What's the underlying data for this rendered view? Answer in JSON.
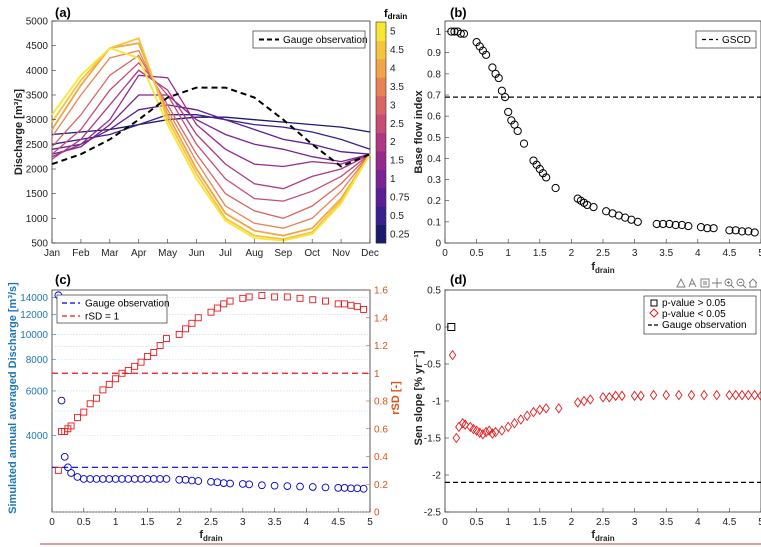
{
  "chart_data": [
    {
      "panel": "(a)",
      "type": "line",
      "ylabel": "Discharge [m³/s]",
      "categories": [
        "Jan",
        "Feb",
        "Mar",
        "Apr",
        "May",
        "Jun",
        "Jul",
        "Aug",
        "Sep",
        "Oct",
        "Nov",
        "Dec"
      ],
      "ylim": [
        500,
        5000
      ],
      "yticks": [
        500,
        1000,
        1500,
        2000,
        2500,
        3000,
        3500,
        4000,
        4500,
        5000
      ],
      "legend": [
        "Gauge observation"
      ],
      "colorbar": {
        "label": "f",
        "sub": "drain",
        "ticks": [
          "0.25",
          "0.5",
          "0.75",
          "1",
          "1.5",
          "2",
          "2.5",
          "3",
          "3.5",
          "4",
          "4.5",
          "5"
        ],
        "colors": [
          "#1a1a6e",
          "#3b1f8c",
          "#5a1f95",
          "#7a2393",
          "#962a8c",
          "#b03882",
          "#c64d74",
          "#d96565",
          "#e88257",
          "#f1a44a",
          "#f5c53a",
          "#f7e636"
        ]
      },
      "gauge": [
        2100,
        2300,
        2600,
        3000,
        3450,
        3650,
        3650,
        3450,
        3000,
        2500,
        2050,
        2300
      ],
      "series": [
        {
          "values": [
            2700,
            2750,
            2800,
            2900,
            3000,
            3050,
            3050,
            3000,
            2950,
            2900,
            2850,
            2750
          ]
        },
        {
          "values": [
            2500,
            2600,
            2700,
            2900,
            3100,
            3100,
            3000,
            2900,
            2850,
            2750,
            2600,
            2400
          ]
        },
        {
          "values": [
            2400,
            2500,
            2800,
            3200,
            3300,
            3200,
            3000,
            2800,
            2600,
            2500,
            2350,
            2300
          ]
        },
        {
          "values": [
            2300,
            2450,
            2900,
            3500,
            3500,
            3000,
            2700,
            2500,
            2400,
            2250,
            2150,
            2300
          ]
        },
        {
          "values": [
            2250,
            2500,
            3000,
            3900,
            3850,
            2900,
            2400,
            2100,
            2050,
            2150,
            2100,
            2300
          ]
        },
        {
          "values": [
            2200,
            2600,
            3300,
            4000,
            3600,
            2700,
            2100,
            1700,
            1600,
            1850,
            2000,
            2300
          ]
        },
        {
          "values": [
            2300,
            2800,
            3600,
            4150,
            3500,
            2500,
            1800,
            1400,
            1350,
            1550,
            1850,
            2300
          ]
        },
        {
          "values": [
            2450,
            3100,
            3900,
            4300,
            3300,
            2300,
            1500,
            1150,
            1000,
            1250,
            1700,
            2300
          ]
        },
        {
          "values": [
            2650,
            3500,
            4250,
            4400,
            3200,
            2150,
            1250,
            900,
            800,
            1000,
            1550,
            2300
          ]
        },
        {
          "values": [
            2800,
            3700,
            4450,
            4550,
            3100,
            2000,
            1100,
            750,
            650,
            800,
            1400,
            2300
          ]
        },
        {
          "values": [
            2950,
            3800,
            4450,
            4650,
            3000,
            1900,
            1000,
            650,
            580,
            720,
            1350,
            2300
          ]
        },
        {
          "values": [
            3100,
            3900,
            4450,
            4250,
            2900,
            1800,
            950,
            600,
            550,
            680,
            1300,
            2300
          ]
        }
      ]
    },
    {
      "panel": "(b)",
      "type": "scatter",
      "ylabel": "Base flow index",
      "xlabel": "f",
      "xlabel_sub": "drain",
      "xlim": [
        0,
        5
      ],
      "ylim": [
        0,
        1.05
      ],
      "xticks": [
        "0",
        "0.5",
        "1",
        "1.5",
        "2",
        "2.5",
        "3",
        "3.5",
        "4",
        "4.5",
        "5"
      ],
      "yticks": [
        "0",
        "0.1",
        "0.2",
        "0.3",
        "0.4",
        "0.5",
        "0.6",
        "0.7",
        "0.8",
        "0.9",
        "1"
      ],
      "legend": [
        "GSCD"
      ],
      "gscd": 0.69,
      "x": [
        0.1,
        0.15,
        0.2,
        0.25,
        0.3,
        0.5,
        0.55,
        0.6,
        0.65,
        0.75,
        0.8,
        0.85,
        0.9,
        0.95,
        1.0,
        1.05,
        1.1,
        1.15,
        1.25,
        1.4,
        1.45,
        1.5,
        1.55,
        1.6,
        1.75,
        2.1,
        2.15,
        2.2,
        2.25,
        2.35,
        2.55,
        2.65,
        2.75,
        2.85,
        2.95,
        3.05,
        3.35,
        3.45,
        3.55,
        3.65,
        3.75,
        3.85,
        4.05,
        4.15,
        4.25,
        4.5,
        4.6,
        4.7,
        4.8,
        4.9
      ],
      "y": [
        1.0,
        1.0,
        1.0,
        0.99,
        0.99,
        0.95,
        0.93,
        0.91,
        0.89,
        0.83,
        0.8,
        0.78,
        0.72,
        0.69,
        0.62,
        0.58,
        0.56,
        0.53,
        0.47,
        0.39,
        0.37,
        0.35,
        0.33,
        0.31,
        0.26,
        0.21,
        0.2,
        0.19,
        0.18,
        0.17,
        0.15,
        0.14,
        0.13,
        0.12,
        0.11,
        0.1,
        0.09,
        0.09,
        0.09,
        0.085,
        0.085,
        0.08,
        0.075,
        0.07,
        0.07,
        0.06,
        0.06,
        0.055,
        0.055,
        0.05
      ]
    },
    {
      "panel": "(c)",
      "type": "scatter",
      "ylabel_left": "Simulated annual averaged Discharge [m³/s]",
      "ylabel_right": "rSD [-]",
      "xlabel": "f",
      "xlabel_sub": "drain",
      "xlim": [
        0,
        5
      ],
      "xticks": [
        "0",
        "0.5",
        "1",
        "1.5",
        "2",
        "2.5",
        "3",
        "3.5",
        "4",
        "4.5",
        "5"
      ],
      "yticks_left": [
        "4000",
        "6000",
        "8000",
        "10000",
        "12000",
        "14000"
      ],
      "yticks_right": [
        "0",
        "0.2",
        "0.4",
        "0.6",
        "0.8",
        "1",
        "1.2",
        "1.4",
        "1.6"
      ],
      "ylim_right": [
        0,
        1.6
      ],
      "legend": [
        "Gauge observation",
        "rSD = 1"
      ],
      "x": [
        0.1,
        0.15,
        0.2,
        0.25,
        0.3,
        0.4,
        0.5,
        0.6,
        0.7,
        0.8,
        0.9,
        1.0,
        1.1,
        1.2,
        1.3,
        1.4,
        1.5,
        1.6,
        1.7,
        1.8,
        2.0,
        2.1,
        2.2,
        2.3,
        2.5,
        2.6,
        2.7,
        2.8,
        3.0,
        3.1,
        3.3,
        3.5,
        3.7,
        3.9,
        4.1,
        4.3,
        4.5,
        4.6,
        4.7,
        4.8,
        4.9
      ],
      "rsd": [
        0.3,
        0.58,
        0.58,
        0.6,
        0.62,
        0.68,
        0.72,
        0.78,
        0.82,
        0.88,
        0.92,
        0.96,
        1.0,
        1.02,
        1.05,
        1.08,
        1.12,
        1.15,
        1.2,
        1.25,
        1.28,
        1.32,
        1.36,
        1.4,
        1.44,
        1.47,
        1.5,
        1.52,
        1.54,
        1.55,
        1.56,
        1.55,
        1.55,
        1.54,
        1.53,
        1.52,
        1.5,
        1.5,
        1.49,
        1.48,
        1.46
      ],
      "discharge": [
        14300,
        5500,
        3300,
        3000,
        2850,
        2750,
        2700,
        2700,
        2700,
        2700,
        2700,
        2700,
        2700,
        2700,
        2700,
        2700,
        2700,
        2700,
        2700,
        2700,
        2680,
        2680,
        2660,
        2650,
        2630,
        2620,
        2600,
        2590,
        2580,
        2570,
        2550,
        2540,
        2530,
        2520,
        2510,
        2500,
        2490,
        2490,
        2480,
        2480,
        2470
      ],
      "gauge_discharge": 3000
    },
    {
      "panel": "(d)",
      "type": "scatter",
      "ylabel": "Sen slope [% yr⁻¹]",
      "xlabel": "f",
      "xlabel_sub": "drain",
      "xlim": [
        0,
        5
      ],
      "ylim": [
        -2.5,
        0.5
      ],
      "xticks": [
        "0",
        "0.5",
        "1",
        "1.5",
        "2",
        "2.5",
        "3",
        "3.5",
        "4",
        "4.5",
        "5"
      ],
      "yticks": [
        "-2.5",
        "-2",
        "-1.5",
        "-1",
        "-0.5",
        "0",
        "0.5"
      ],
      "legend": [
        "p-value > 0.05",
        "p-value < 0.05",
        "Gauge observation"
      ],
      "gauge_slope": -2.1,
      "insig": {
        "x": [
          0.1
        ],
        "y": [
          0.0
        ]
      },
      "sig": {
        "x": [
          0.12,
          0.18,
          0.22,
          0.28,
          0.32,
          0.4,
          0.45,
          0.5,
          0.55,
          0.6,
          0.65,
          0.7,
          0.75,
          0.8,
          0.9,
          1.0,
          1.1,
          1.2,
          1.3,
          1.4,
          1.5,
          1.6,
          1.8,
          2.1,
          2.2,
          2.3,
          2.5,
          2.6,
          2.7,
          2.8,
          3.0,
          3.1,
          3.3,
          3.5,
          3.7,
          3.9,
          4.1,
          4.3,
          4.5,
          4.6,
          4.7,
          4.8,
          4.9,
          5.0
        ],
        "y": [
          -0.38,
          -1.5,
          -1.35,
          -1.3,
          -1.32,
          -1.35,
          -1.38,
          -1.4,
          -1.43,
          -1.45,
          -1.42,
          -1.4,
          -1.44,
          -1.42,
          -1.4,
          -1.35,
          -1.3,
          -1.25,
          -1.2,
          -1.15,
          -1.12,
          -1.1,
          -1.1,
          -1.02,
          -1.0,
          -0.98,
          -0.95,
          -0.95,
          -0.93,
          -0.93,
          -0.93,
          -0.93,
          -0.92,
          -0.92,
          -0.92,
          -0.92,
          -0.92,
          -0.92,
          -0.92,
          -0.92,
          -0.92,
          -0.92,
          -0.92,
          -0.93
        ]
      }
    }
  ]
}
